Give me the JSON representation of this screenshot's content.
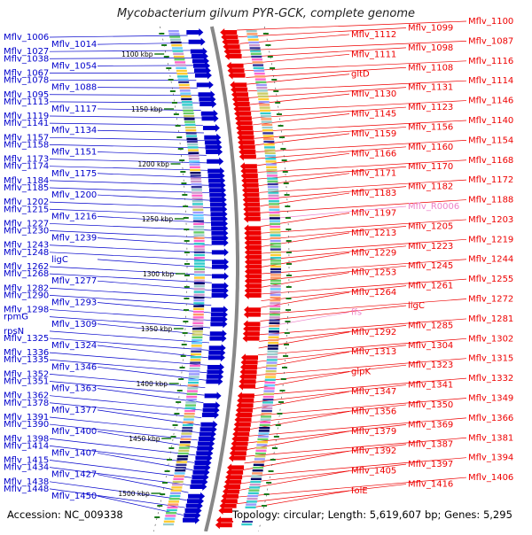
{
  "title": "Mycobacterium gilvum PYR-GCK, complete genome",
  "accession": "Accession: NC_009338",
  "topology": "Topology: circular; Length: 5,619,607 bp; Genes: 5,295",
  "colors": {
    "forward": "#0000cc",
    "reverse": "#ee0000",
    "rna": "#ee82c8",
    "backbone": "#888888",
    "tick": "#1a7a1a"
  },
  "scale_labels": [
    "1100 kbp",
    "1150 kbp",
    "1200 kbp",
    "1250 kbp",
    "1300 kbp",
    "1350 kbp",
    "1400 kbp",
    "1450 kbp",
    "1500 kbp"
  ],
  "left_labels": [
    "Mflv_1006",
    "Mflv_1014",
    "Mflv_1027",
    "Mflv_1038",
    "Mflv_1054",
    "Mflv_1067",
    "Mflv_1078",
    "Mflv_1088",
    "Mflv_1095",
    "Mflv_1113",
    "Mflv_1117",
    "Mflv_1119",
    "Mflv_1141",
    "Mflv_1134",
    "Mflv_1157",
    "Mflv_1158",
    "Mflv_1151",
    "Mflv_1173",
    "Mflv_1174",
    "Mflv_1175",
    "Mflv_1184",
    "Mflv_1185",
    "Mflv_1200",
    "Mflv_1202",
    "Mflv_1215",
    "Mflv_1216",
    "Mflv_1227",
    "Mflv_1230",
    "Mflv_1239",
    "Mflv_1243",
    "Mflv_1248",
    "ligC",
    "Mflv_1262",
    "Mflv_1268",
    "Mflv_1277",
    "Mflv_1282",
    "Mflv_1290",
    "Mflv_1293",
    "Mflv_1298",
    "rpmG",
    "Mflv_1309",
    "rpsN",
    "Mflv_1325",
    "Mflv_1324",
    "Mflv_1336",
    "Mflv_1335",
    "Mflv_1346",
    "Mflv_1352",
    "Mflv_1351",
    "Mflv_1363",
    "Mflv_1362",
    "Mflv_1378",
    "Mflv_1377",
    "Mflv_1391",
    "Mflv_1390",
    "Mflv_1400",
    "Mflv_1398",
    "Mflv_1414",
    "Mflv_1407",
    "Mflv_1415",
    "Mflv_1434",
    "Mflv_1427",
    "Mflv_1438",
    "Mflv_1448",
    "Mflv_1450"
  ],
  "right_labels": [
    "Mflv_1100",
    "Mflv_1099",
    "Mflv_1112",
    "Mflv_1087",
    "Mflv_1098",
    "Mflv_1111",
    "Mflv_1116",
    "Mflv_1108",
    "gltD",
    "Mflv_1114",
    "Mflv_1131",
    "Mflv_1130",
    "Mflv_1146",
    "Mflv_1123",
    "Mflv_1145",
    "Mflv_1140",
    "Mflv_1156",
    "Mflv_1159",
    "Mflv_1154",
    "Mflv_1160",
    "Mflv_1166",
    "Mflv_1168",
    "Mflv_1170",
    "Mflv_1171",
    "Mflv_1172",
    "Mflv_1182",
    "Mflv_1183",
    "Mflv_1188",
    "Mflv_R0006",
    "Mflv_1197",
    "Mflv_1203",
    "Mflv_1205",
    "Mflv_1213",
    "Mflv_1219",
    "Mflv_1223",
    "Mflv_1229",
    "Mflv_1244",
    "Mflv_1245",
    "Mflv_1253",
    "Mflv_1255",
    "Mflv_1261",
    "Mflv_1264",
    "Mflv_1272",
    "ligC",
    "ffs",
    "Mflv_1281",
    "Mflv_1285",
    "Mflv_1292",
    "Mflv_1302",
    "Mflv_1304",
    "Mflv_1313",
    "Mflv_1315",
    "Mflv_1323",
    "glpK",
    "Mflv_1332",
    "Mflv_1341",
    "Mflv_1347",
    "Mflv_1349",
    "Mflv_1350",
    "Mflv_1356",
    "Mflv_1366",
    "Mflv_1369",
    "Mflv_1379",
    "Mflv_1381",
    "Mflv_1387",
    "Mflv_1392",
    "Mflv_1394",
    "Mflv_1397",
    "Mflv_1405",
    "Mflv_1406",
    "Mflv_1416",
    "folE"
  ]
}
